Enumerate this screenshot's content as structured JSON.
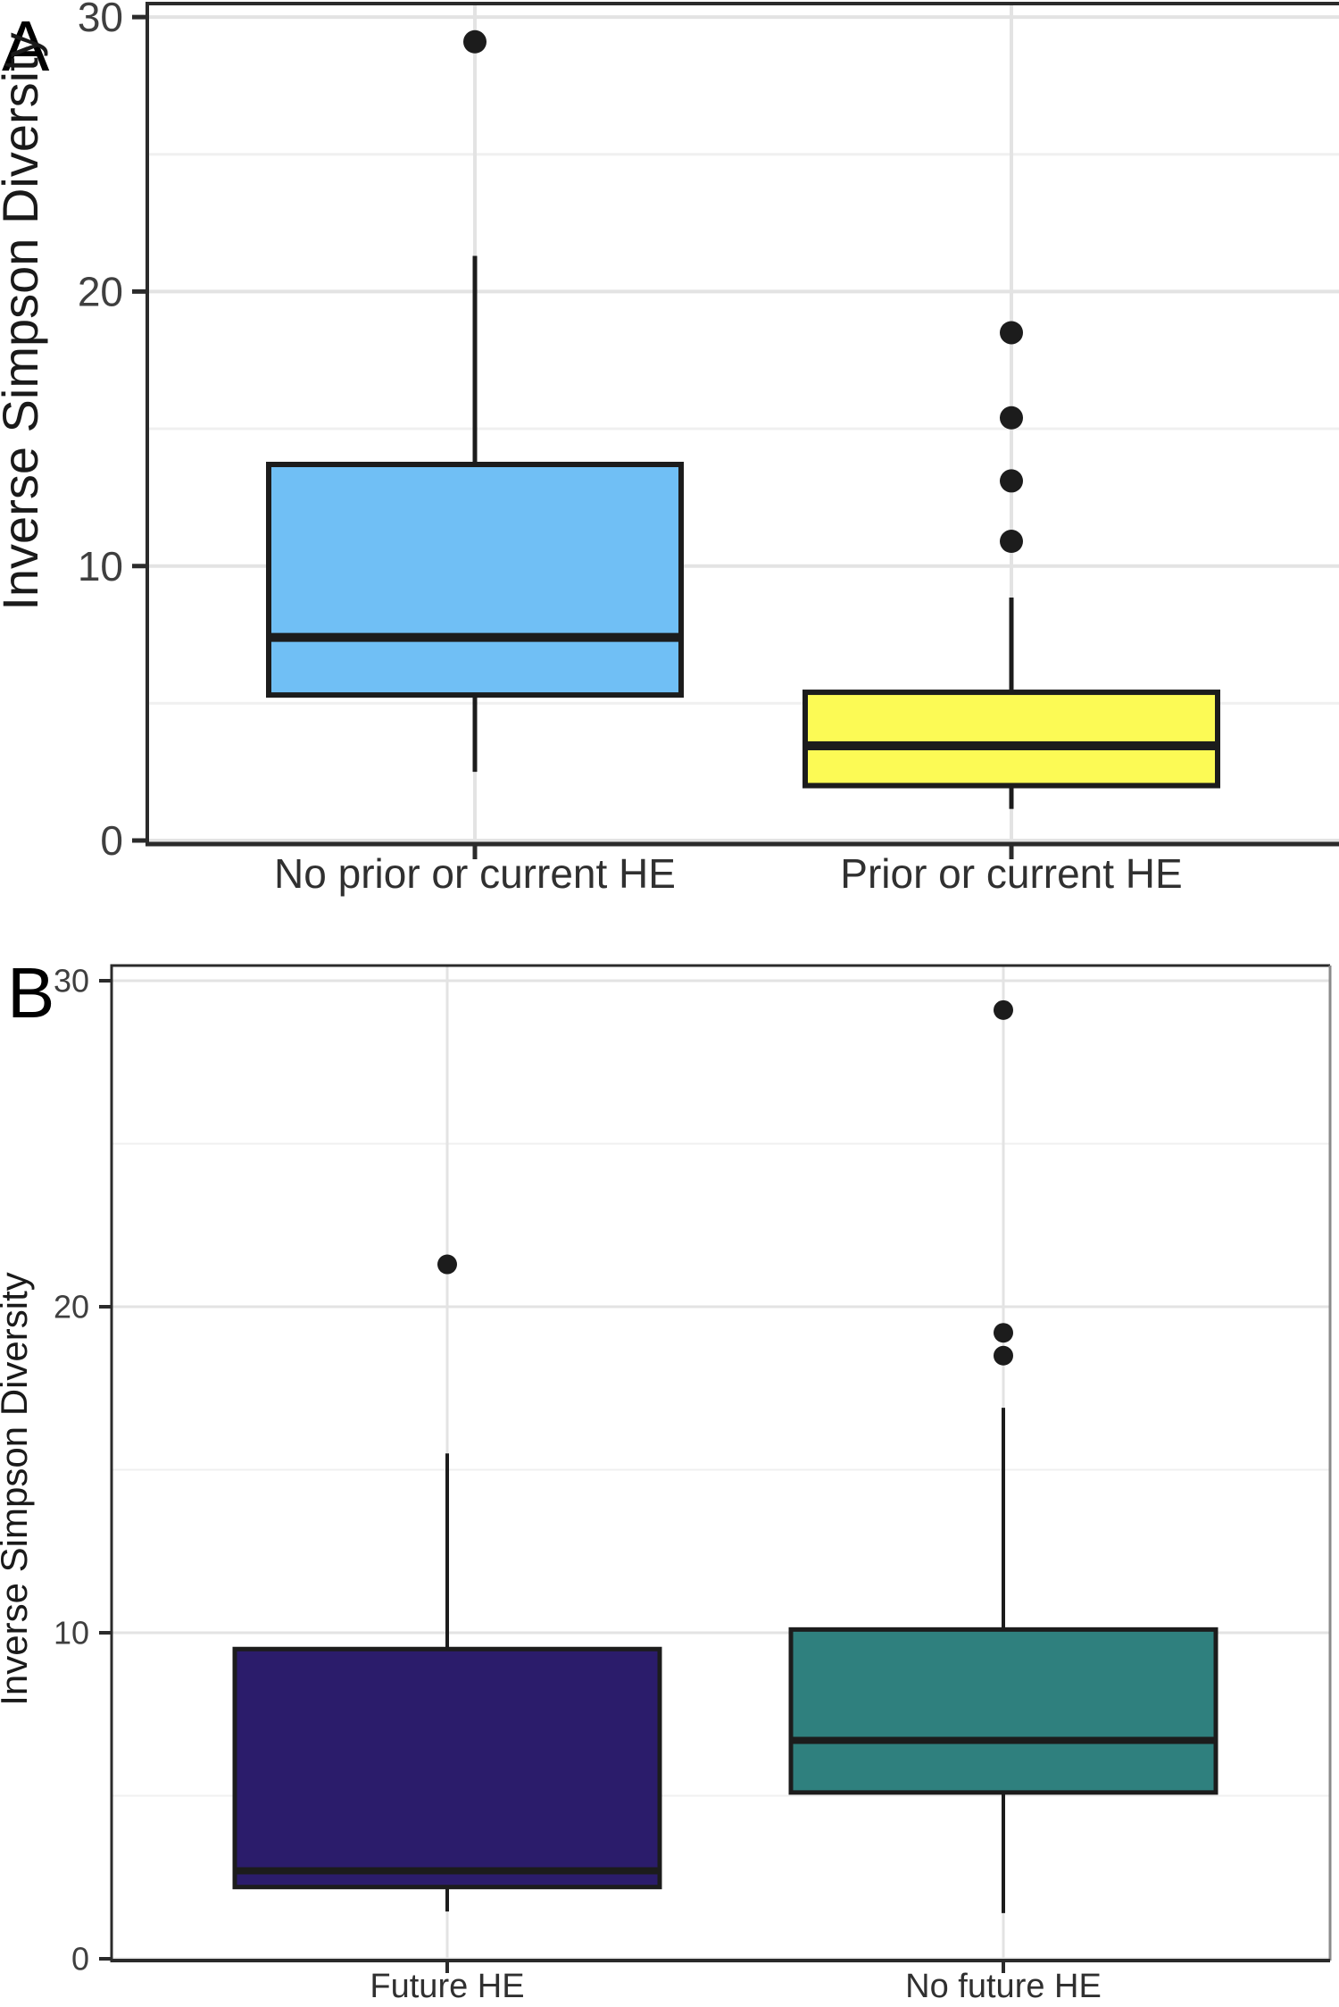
{
  "figure": {
    "background": "#ffffff",
    "ink_color": "#1c1c1c",
    "grid_major_color": "#e3e3e3",
    "grid_minor_color": "#f0f0f0",
    "tick_label_color": "#3f3f3f",
    "axis_label_color": "#1a1a1a"
  },
  "chart_data": [
    {
      "type": "boxplot",
      "panel_label": "A",
      "title": "",
      "xlabel": "",
      "ylabel": "Inverse Simpson Diversity",
      "ylim": [
        0,
        30
      ],
      "y_major_ticks": [
        0,
        10,
        20,
        30
      ],
      "y_minor_gridlines": [
        5,
        15,
        25
      ],
      "grid": "on",
      "categories": [
        "No prior or current HE",
        "Prior or current HE"
      ],
      "series": [
        {
          "name": "No prior or current HE",
          "fill_color": "#70BFF5",
          "whisker_low": 2.5,
          "q1": 5.3,
          "median": 7.4,
          "q3": 13.7,
          "whisker_high": 21.3,
          "outliers": [
            29.1
          ]
        },
        {
          "name": "Prior or current HE",
          "fill_color": "#FCFA55",
          "whisker_low": 1.15,
          "q1": 2.0,
          "median": 3.45,
          "q3": 5.4,
          "whisker_high": 8.85,
          "outliers": [
            10.9,
            13.1,
            15.4,
            18.5
          ]
        }
      ]
    },
    {
      "type": "boxplot",
      "panel_label": "B",
      "title": "",
      "xlabel": "",
      "ylabel": "Inverse Simpson Diversity",
      "ylim": [
        0,
        30
      ],
      "y_major_ticks": [
        0,
        10,
        20,
        30
      ],
      "y_minor_gridlines": [
        5,
        15,
        25
      ],
      "grid": "on",
      "categories": [
        "Future HE",
        "No future HE"
      ],
      "series": [
        {
          "name": "Future HE",
          "fill_color": "#2B1C6B",
          "whisker_low": 1.45,
          "q1": 2.2,
          "median": 2.7,
          "q3": 9.5,
          "whisker_high": 15.5,
          "outliers": [
            21.3
          ]
        },
        {
          "name": "No future HE",
          "fill_color": "#2F807E",
          "whisker_low": 1.4,
          "q1": 5.1,
          "median": 6.7,
          "q3": 10.1,
          "whisker_high": 16.9,
          "outliers": [
            18.5,
            19.2,
            29.1
          ]
        }
      ]
    }
  ]
}
